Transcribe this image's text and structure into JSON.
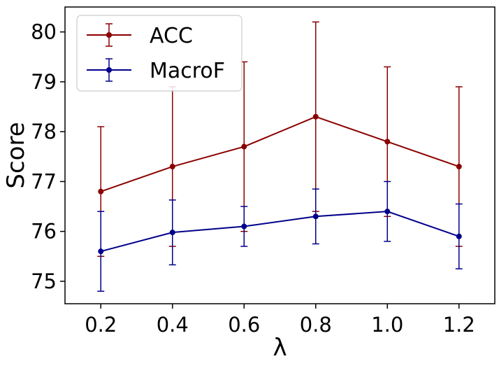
{
  "chart_data": {
    "type": "line",
    "title": "",
    "xlabel": "λ",
    "ylabel": "Score",
    "x": [
      0.2,
      0.4,
      0.6,
      0.8,
      1.0,
      1.2
    ],
    "x_tick_labels": [
      "0.2",
      "0.4",
      "0.6",
      "0.8",
      "1.0",
      "1.2"
    ],
    "xlim": [
      0.1,
      1.3
    ],
    "y_ticks": [
      75,
      76,
      77,
      78,
      79,
      80
    ],
    "y_tick_labels": [
      "75",
      "76",
      "77",
      "78",
      "79",
      "80"
    ],
    "ylim": [
      74.55,
      80.5
    ],
    "grid": false,
    "legend_position": "top-left",
    "series": [
      {
        "name": "ACC",
        "color": "#8b0000",
        "values": [
          76.8,
          77.3,
          77.7,
          78.3,
          77.8,
          77.3
        ],
        "error": [
          1.3,
          1.6,
          1.7,
          1.9,
          1.5,
          1.6
        ]
      },
      {
        "name": "MacroF",
        "color": "#00008b",
        "values": [
          75.6,
          75.98,
          76.1,
          76.3,
          76.4,
          75.9
        ],
        "error": [
          0.8,
          0.65,
          0.4,
          0.55,
          0.6,
          0.65
        ]
      }
    ]
  }
}
